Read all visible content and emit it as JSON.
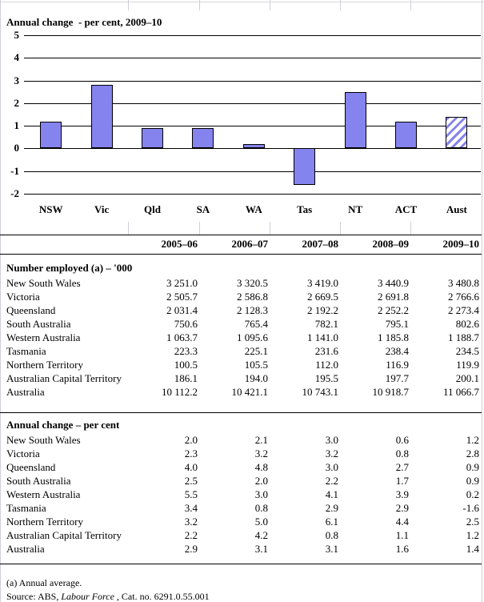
{
  "page": {
    "title": "Annual change  - per cent, 2009–10",
    "footnote": "(a) Annual average.",
    "source_prefix": "Source: ABS, ",
    "source_italic": "Labour Force",
    "source_suffix": " , Cat. no. 6291.0.55.001"
  },
  "chart_data": {
    "type": "bar",
    "title": "Annual change  - per cent, 2009–10",
    "categories": [
      "NSW",
      "Vic",
      "Qld",
      "SA",
      "WA",
      "Tas",
      "NT",
      "ACT",
      "Aust"
    ],
    "values": [
      1.2,
      2.8,
      0.9,
      0.9,
      0.2,
      -1.6,
      2.5,
      1.2,
      1.4
    ],
    "xlabel": "",
    "ylabel": "",
    "ylim": [
      -2,
      5
    ],
    "yticks": [
      5,
      4,
      3,
      2,
      1,
      0,
      -1,
      -2
    ],
    "grid": true,
    "legend": "none",
    "bar_color": "#8583ee",
    "hatched_category": "Aust"
  },
  "table": {
    "col_headers": [
      "2005–06",
      "2006–07",
      "2007–08",
      "2008–09",
      "2009–10"
    ],
    "sections": [
      {
        "header": "Number employed (a) – '000",
        "rows": [
          {
            "label": "New South Wales",
            "values": [
              "3 251.0",
              "3 320.5",
              "3 419.0",
              "3 440.9",
              "3 480.8"
            ]
          },
          {
            "label": "Victoria",
            "values": [
              "2 505.7",
              "2 586.8",
              "2 669.5",
              "2 691.8",
              "2 766.6"
            ]
          },
          {
            "label": "Queensland",
            "values": [
              "2 031.4",
              "2 128.3",
              "2 192.2",
              "2 252.2",
              "2 273.4"
            ]
          },
          {
            "label": "South Australia",
            "values": [
              "750.6",
              "765.4",
              "782.1",
              "795.1",
              "802.6"
            ]
          },
          {
            "label": "Western Australia",
            "values": [
              "1 063.7",
              "1 095.6",
              "1 141.0",
              "1 185.8",
              "1 188.7"
            ]
          },
          {
            "label": "Tasmania",
            "values": [
              "223.3",
              "225.1",
              "231.6",
              "238.4",
              "234.5"
            ]
          },
          {
            "label": "Northern Territory",
            "values": [
              "100.5",
              "105.5",
              "112.0",
              "116.9",
              "119.9"
            ]
          },
          {
            "label": "Australian Capital Territory",
            "values": [
              "186.1",
              "194.0",
              "195.5",
              "197.7",
              "200.1"
            ]
          },
          {
            "label": "Australia",
            "values": [
              "10 112.2",
              "10 421.1",
              "10 743.1",
              "10 918.7",
              "11 066.7"
            ]
          }
        ]
      },
      {
        "header": "Annual change – per cent",
        "rows": [
          {
            "label": "New South Wales",
            "values": [
              "2.0",
              "2.1",
              "3.0",
              "0.6",
              "1.2"
            ]
          },
          {
            "label": "Victoria",
            "values": [
              "2.3",
              "3.2",
              "3.2",
              "0.8",
              "2.8"
            ]
          },
          {
            "label": "Queensland",
            "values": [
              "4.0",
              "4.8",
              "3.0",
              "2.7",
              "0.9"
            ]
          },
          {
            "label": "South Australia",
            "values": [
              "2.5",
              "2.0",
              "2.2",
              "1.7",
              "0.9"
            ]
          },
          {
            "label": "Western Australia",
            "values": [
              "5.5",
              "3.0",
              "4.1",
              "3.9",
              "0.2"
            ]
          },
          {
            "label": "Tasmania",
            "values": [
              "3.4",
              "0.8",
              "2.9",
              "2.9",
              "-1.6"
            ]
          },
          {
            "label": "Northern Territory",
            "values": [
              "3.2",
              "5.0",
              "6.1",
              "4.4",
              "2.5"
            ]
          },
          {
            "label": "Australian Capital Territory",
            "values": [
              "2.2",
              "4.2",
              "0.8",
              "1.1",
              "1.2"
            ]
          },
          {
            "label": "Australia",
            "values": [
              "2.9",
              "3.1",
              "3.1",
              "1.6",
              "1.4"
            ]
          }
        ]
      }
    ]
  }
}
